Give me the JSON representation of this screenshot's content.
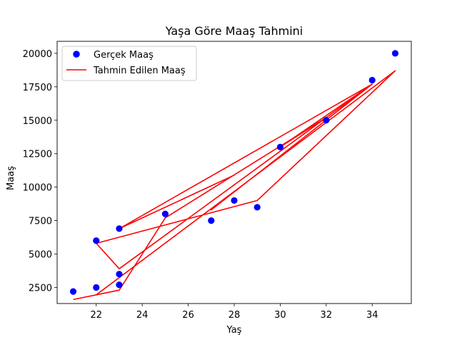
{
  "chart_data": {
    "type": "scatter",
    "title": "Yaşa Göre Maaş Tahmini",
    "xlabel": "Yaş",
    "ylabel": "Maaş",
    "xlim": [
      20.3,
      35.7
    ],
    "ylim": [
      1300,
      20900
    ],
    "xticks": [
      22,
      24,
      26,
      28,
      30,
      32,
      34
    ],
    "yticks": [
      2500,
      5000,
      7500,
      10000,
      12500,
      15000,
      17500,
      20000
    ],
    "grid": false,
    "legend_position": "top-left",
    "series": [
      {
        "name": "Gerçek Maaş",
        "kind": "scatter",
        "color": "#0000ff",
        "points": [
          {
            "x": 21,
            "y": 2200
          },
          {
            "x": 22,
            "y": 2500
          },
          {
            "x": 23,
            "y": 2700
          },
          {
            "x": 23,
            "y": 3500
          },
          {
            "x": 22,
            "y": 6000
          },
          {
            "x": 23,
            "y": 6900
          },
          {
            "x": 25,
            "y": 8000
          },
          {
            "x": 27,
            "y": 7500
          },
          {
            "x": 28,
            "y": 9000
          },
          {
            "x": 29,
            "y": 8500
          },
          {
            "x": 30,
            "y": 13000
          },
          {
            "x": 32,
            "y": 15000
          },
          {
            "x": 34,
            "y": 18000
          },
          {
            "x": 35,
            "y": 20000
          }
        ]
      },
      {
        "name": "Tahmin Edilen Maaş",
        "kind": "line",
        "color": "#ff0000",
        "points": [
          {
            "x": 21,
            "y": 1600
          },
          {
            "x": 23,
            "y": 2300
          },
          {
            "x": 25,
            "y": 7700
          },
          {
            "x": 32,
            "y": 15200
          },
          {
            "x": 30,
            "y": 13000
          },
          {
            "x": 34,
            "y": 17700
          },
          {
            "x": 23,
            "y": 6900
          },
          {
            "x": 28,
            "y": 10900
          },
          {
            "x": 23,
            "y": 6900
          },
          {
            "x": 34,
            "y": 17700
          },
          {
            "x": 27,
            "y": 8300
          },
          {
            "x": 34,
            "y": 17700
          },
          {
            "x": 23,
            "y": 3900
          },
          {
            "x": 22,
            "y": 5800
          },
          {
            "x": 29,
            "y": 9000
          },
          {
            "x": 35,
            "y": 18700
          },
          {
            "x": 22,
            "y": 1950
          }
        ]
      }
    ]
  }
}
